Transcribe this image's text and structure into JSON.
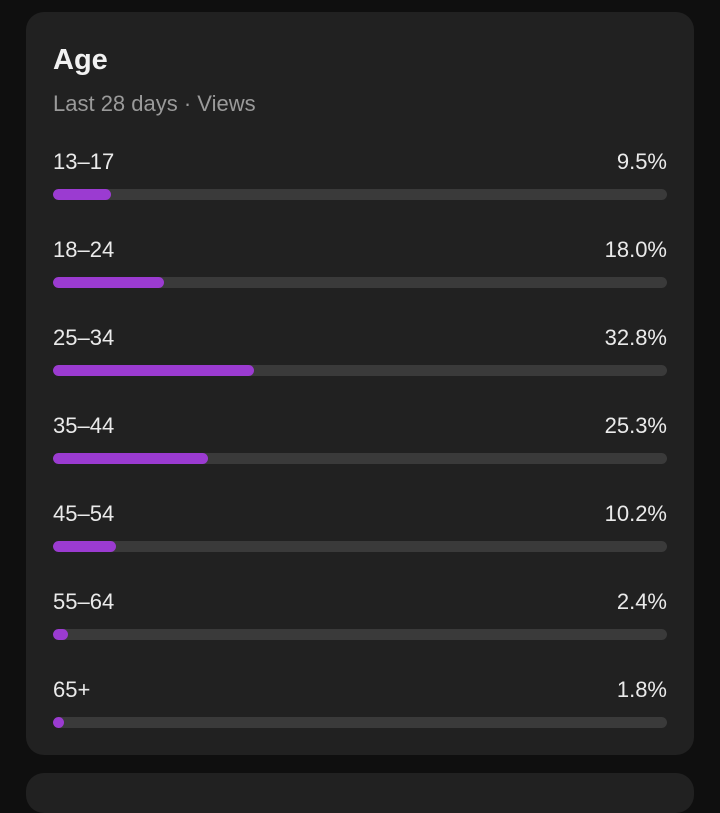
{
  "card": {
    "title": "Age",
    "subtitle": "Last 28 days · Views",
    "accent_color": "#9b3bd1",
    "track_color": "#3a3a3a",
    "rows": [
      {
        "label": "13–17",
        "value_text": "9.5%",
        "percent": 9.5
      },
      {
        "label": "18–24",
        "value_text": "18.0%",
        "percent": 18.0
      },
      {
        "label": "25–34",
        "value_text": "32.8%",
        "percent": 32.8
      },
      {
        "label": "35–44",
        "value_text": "25.3%",
        "percent": 25.3
      },
      {
        "label": "45–54",
        "value_text": "10.2%",
        "percent": 10.2
      },
      {
        "label": "55–64",
        "value_text": "2.4%",
        "percent": 2.4
      },
      {
        "label": "65+",
        "value_text": "1.8%",
        "percent": 1.8
      }
    ]
  }
}
